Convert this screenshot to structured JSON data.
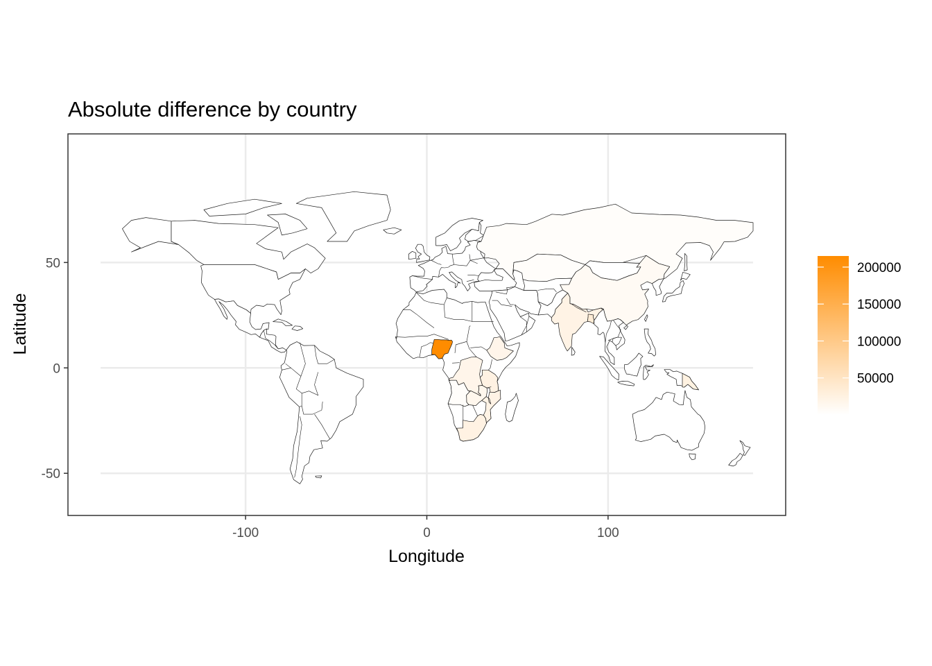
{
  "chart_data": {
    "type": "choropleth-map",
    "title": "Absolute difference by country",
    "xlabel": "Longitude",
    "ylabel": "Latitude",
    "x_ticks": [
      -100,
      0,
      100
    ],
    "y_ticks": [
      50,
      0,
      -50
    ],
    "xlim": [
      -198,
      198
    ],
    "ylim": [
      -70,
      111
    ],
    "grid": true,
    "legend": {
      "position": "right",
      "type": "colorbar",
      "low_color": "#ffffff",
      "high_color": "#ff8c00",
      "min": 0,
      "max": 215000,
      "breaks": [
        200000,
        150000,
        100000,
        50000
      ]
    },
    "regions": [
      {
        "region": "Russia",
        "value": 4000
      },
      {
        "region": "Kazakhstan",
        "value": 4000
      },
      {
        "region": "China",
        "value": 9000
      },
      {
        "region": "India",
        "value": 22000
      },
      {
        "region": "Bangladesh",
        "value": 35000
      },
      {
        "region": "Nigeria",
        "value": 215000
      },
      {
        "region": "Ethiopia",
        "value": 18000
      },
      {
        "region": "DR Congo",
        "value": 18000
      },
      {
        "region": "Tanzania",
        "value": 24000
      },
      {
        "region": "Mozambique",
        "value": 22000
      },
      {
        "region": "Zambia",
        "value": 15000
      },
      {
        "region": "Angola",
        "value": 4000
      },
      {
        "region": "South Africa",
        "value": 24000
      },
      {
        "region": "Indonesia",
        "value": 12000
      },
      {
        "region": "Papua New Guinea",
        "value": 25000
      }
    ]
  }
}
